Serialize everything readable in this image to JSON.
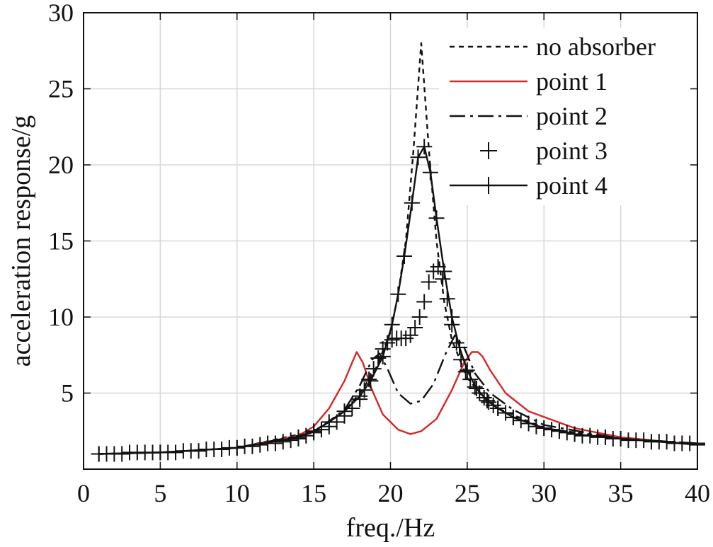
{
  "chart_data": {
    "type": "line",
    "xlabel": "freq./Hz",
    "ylabel": "acceleration response/g",
    "xlim": [
      0,
      40
    ],
    "ylim": [
      0,
      30
    ],
    "xticks": [
      0,
      5,
      10,
      15,
      20,
      25,
      30,
      35,
      40
    ],
    "yticks": [
      5,
      10,
      15,
      20,
      25,
      30
    ],
    "grid": true,
    "legend_position": "top-right",
    "series": [
      {
        "name": "no absorber",
        "style": "dashed",
        "color": "#111111",
        "x": [
          1,
          5,
          10,
          15,
          17,
          18,
          19,
          20,
          20.5,
          21,
          21.5,
          22,
          22.5,
          23,
          23.5,
          24,
          25,
          26,
          27,
          30,
          35,
          40
        ],
        "y": [
          1.0,
          1.1,
          1.4,
          2.5,
          3.8,
          5.0,
          6.5,
          9.0,
          11.5,
          15.0,
          21.0,
          28.0,
          21.0,
          15.0,
          11.0,
          8.5,
          6.0,
          4.8,
          4.0,
          2.7,
          2.0,
          1.7
        ]
      },
      {
        "name": "point 1",
        "style": "solid",
        "color": "#d62728",
        "x": [
          1,
          5,
          10,
          14,
          15,
          16,
          17,
          17.5,
          17.8,
          18.2,
          18.8,
          19.5,
          20.5,
          21.3,
          22,
          23,
          24,
          24.8,
          25.3,
          25.7,
          26,
          26.5,
          27.5,
          29,
          32,
          35,
          40
        ],
        "y": [
          1.0,
          1.1,
          1.4,
          2.2,
          2.8,
          4.0,
          5.8,
          7.0,
          7.7,
          7.0,
          5.2,
          3.6,
          2.6,
          2.3,
          2.5,
          3.3,
          5.2,
          7.0,
          7.7,
          7.7,
          7.4,
          6.5,
          5.0,
          3.8,
          2.7,
          2.1,
          1.6
        ]
      },
      {
        "name": "point 2",
        "style": "dashdot",
        "color": "#111111",
        "x": [
          1,
          5,
          10,
          15,
          17,
          18,
          18.8,
          19.3,
          19.8,
          20.5,
          21.3,
          22,
          22.8,
          23.6,
          24.2,
          24.8,
          25.5,
          26.5,
          28,
          30,
          35,
          40
        ],
        "y": [
          1.0,
          1.1,
          1.4,
          2.4,
          3.9,
          5.5,
          7.2,
          7.6,
          6.6,
          5.0,
          4.3,
          4.5,
          5.6,
          7.6,
          8.8,
          8.0,
          6.3,
          5.0,
          3.9,
          2.9,
          2.0,
          1.7
        ]
      },
      {
        "name": "point 3",
        "style": "markers",
        "color": "#111111",
        "x": [
          1,
          1.5,
          2,
          2.5,
          3,
          3.5,
          4,
          4.5,
          5,
          5.5,
          6,
          6.5,
          7,
          7.5,
          8,
          8.5,
          9,
          9.5,
          10,
          10.5,
          11,
          11.5,
          12,
          12.5,
          13,
          13.5,
          14,
          14.5,
          15,
          15.5,
          16,
          16.5,
          17,
          17.5,
          18,
          18.3,
          18.6,
          18.9,
          19.2,
          19.5,
          19.8,
          20.1,
          20.4,
          20.7,
          21,
          21.3,
          21.6,
          21.9,
          22.2,
          22.5,
          22.8,
          23.1,
          23.4,
          23.7,
          24,
          24.3,
          24.6,
          24.9,
          25.2,
          25.5,
          25.8,
          26.1,
          26.4,
          26.7,
          27,
          27.5,
          28,
          28.5,
          29,
          29.5,
          30,
          30.5,
          31,
          31.5,
          32,
          32.5,
          33,
          33.5,
          34,
          34.5,
          35,
          35.5,
          36,
          36.5,
          37,
          37.5,
          38,
          38.5,
          39,
          39.5,
          40
        ],
        "y": [
          1.0,
          1.0,
          1.0,
          1.0,
          1.1,
          1.1,
          1.1,
          1.1,
          1.1,
          1.1,
          1.1,
          1.2,
          1.2,
          1.2,
          1.3,
          1.3,
          1.3,
          1.4,
          1.4,
          1.5,
          1.5,
          1.6,
          1.7,
          1.7,
          1.8,
          1.9,
          2.0,
          2.2,
          2.4,
          2.6,
          2.8,
          3.1,
          3.5,
          4.0,
          4.6,
          5.2,
          5.9,
          6.6,
          7.3,
          7.9,
          8.3,
          8.5,
          8.6,
          8.6,
          8.6,
          8.8,
          9.3,
          10.0,
          11.0,
          12.3,
          13.0,
          13.3,
          12.5,
          11.2,
          9.5,
          8.3,
          7.2,
          6.4,
          5.9,
          5.4,
          5.0,
          4.7,
          4.4,
          4.2,
          4.0,
          3.7,
          3.4,
          3.2,
          3.0,
          2.8,
          2.7,
          2.6,
          2.5,
          2.4,
          2.3,
          2.2,
          2.2,
          2.1,
          2.1,
          2.0,
          2.0,
          1.9,
          1.9,
          1.9,
          1.8,
          1.8,
          1.8,
          1.7,
          1.7,
          1.7,
          1.7
        ]
      },
      {
        "name": "point 4",
        "style": "line-markers",
        "color": "#111111",
        "x": [
          1,
          5,
          10,
          14,
          15,
          16,
          17,
          18,
          18.7,
          19.5,
          20.1,
          20.5,
          20.9,
          21.4,
          21.8,
          22.2,
          22.6,
          23,
          23.5,
          24,
          24.5,
          25,
          25.6,
          26.3,
          27,
          28,
          30,
          32,
          35,
          40
        ],
        "y": [
          1.0,
          1.1,
          1.4,
          2.1,
          2.5,
          3.1,
          3.8,
          4.8,
          5.8,
          7.4,
          9.5,
          11.5,
          14.0,
          17.5,
          20.5,
          21.2,
          19.5,
          16.5,
          13.0,
          10.0,
          8.0,
          6.5,
          5.3,
          4.5,
          4.0,
          3.4,
          2.7,
          2.3,
          2.0,
          1.6
        ]
      }
    ]
  }
}
